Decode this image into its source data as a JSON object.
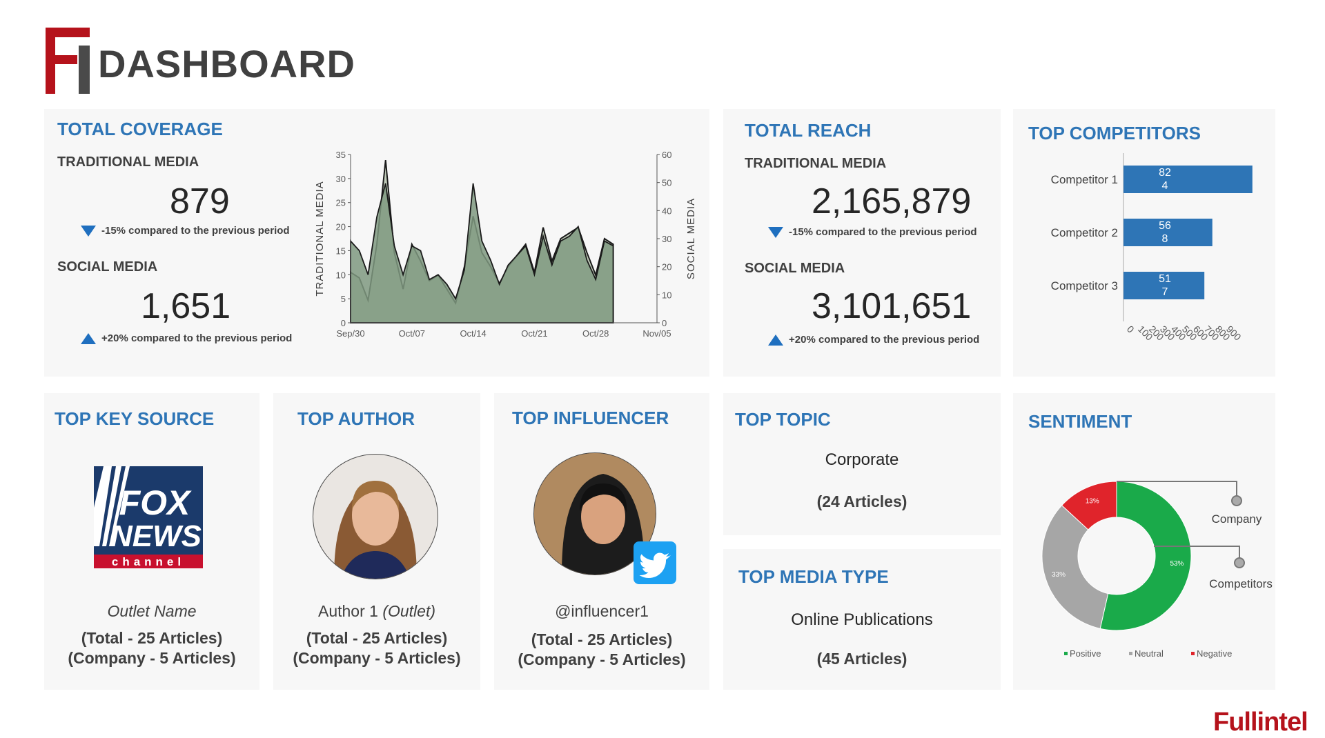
{
  "header": {
    "logo_letters": "FI",
    "title": "DASHBOARD"
  },
  "coverage": {
    "title": "TOTAL COVERAGE",
    "traditional_label": "TRADITIONAL MEDIA",
    "traditional_value": "879",
    "traditional_change": "-15% compared to the previous period",
    "social_label": "SOCIAL MEDIA",
    "social_value": "1,651",
    "social_change": "+20% compared to the previous period"
  },
  "reach": {
    "title": "TOTAL REACH",
    "traditional_label": "TRADITIONAL MEDIA",
    "traditional_value": "2,165,879",
    "traditional_change": "-15% compared to the previous period",
    "social_label": "SOCIAL MEDIA",
    "social_value": "3,101,651",
    "social_change": "+20% compared to the previous period"
  },
  "competitors": {
    "title": "TOP COMPETITORS"
  },
  "key_source": {
    "title": "TOP KEY SOURCE",
    "logo_text_1": "FOX",
    "logo_text_2": "NEWS",
    "logo_text_3": "channel",
    "outlet": "Outlet Name",
    "total": "(Total - 25 Articles)",
    "company": "(Company - 5 Articles)"
  },
  "author": {
    "title": "TOP AUTHOR",
    "name": "Author 1",
    "outlet": "(Outlet)",
    "total": "(Total - 25 Articles)",
    "company": "(Company - 5 Articles)"
  },
  "influencer": {
    "title": "TOP INFLUENCER",
    "handle": "@influencer1",
    "total": "(Total - 25 Articles)",
    "company": "(Company - 5 Articles)"
  },
  "topic": {
    "title": "TOP TOPIC",
    "value": "Corporate",
    "count": "(24 Articles)"
  },
  "media_type": {
    "title": "TOP MEDIA TYPE",
    "value": "Online Publications",
    "count": "(45 Articles)"
  },
  "sentiment": {
    "title": "SENTIMENT",
    "callout_outer": "Company",
    "callout_inner": "Competitors"
  },
  "footer": {
    "brand": "Fullintel"
  },
  "colors": {
    "accent_blue": "#2e75b6",
    "brand_red": "#b5121b",
    "positive": "#1aaa4a",
    "neutral": "#a6a6a6",
    "negative": "#e0242b",
    "bar_blue": "#2e75b6"
  },
  "chart_data": [
    {
      "type": "area",
      "title": "",
      "x": [
        "Sep/30",
        "Oct/01",
        "Oct/02",
        "Oct/03",
        "Oct/04",
        "Oct/05",
        "Oct/06",
        "Oct/07",
        "Oct/08",
        "Oct/09",
        "Oct/10",
        "Oct/11",
        "Oct/12",
        "Oct/13",
        "Oct/14",
        "Oct/15",
        "Oct/16",
        "Oct/17",
        "Oct/18",
        "Oct/19",
        "Oct/20",
        "Oct/21",
        "Oct/22",
        "Oct/23",
        "Oct/24",
        "Oct/25",
        "Oct/26",
        "Oct/27",
        "Oct/28",
        "Oct/29",
        "Oct/30"
      ],
      "x_tick_labels": [
        "Sep/30",
        "Oct/07",
        "Oct/14",
        "Oct/21",
        "Oct/28",
        "Nov/05"
      ],
      "x_tick_positions": [
        0,
        7,
        14,
        21,
        28,
        35
      ],
      "series": [
        {
          "name": "",
          "axis": "left",
          "values": [
            17,
            15,
            10,
            22,
            29,
            16,
            10,
            16,
            15,
            9,
            10,
            8,
            5,
            11,
            29,
            17,
            13,
            8,
            12,
            14,
            16,
            10,
            18,
            12,
            17,
            18,
            20,
            13,
            9,
            17,
            16
          ]
        },
        {
          "name": "",
          "axis": "right",
          "values": [
            18,
            16,
            8,
            28,
            58,
            25,
            12,
            28,
            22,
            15,
            17,
            12,
            7,
            20,
            38,
            25,
            20,
            14,
            20,
            24,
            28,
            18,
            34,
            22,
            30,
            32,
            34,
            25,
            17,
            30,
            28
          ]
        }
      ],
      "xlabel": "",
      "ylabel_left": "TRADITIONAL MEDIA",
      "ylabel_right": "SOCIAL MEDIA",
      "ylim_left": [
        0,
        35
      ],
      "ylim_right": [
        0,
        60
      ],
      "yticks_left": [
        0,
        5,
        10,
        15,
        20,
        25,
        30,
        35
      ],
      "yticks_right": [
        0,
        10,
        20,
        30,
        40,
        50,
        60
      ],
      "x_max": 35,
      "grid": false,
      "legend": "none"
    },
    {
      "type": "bar",
      "orientation": "horizontal",
      "categories": [
        "Competitor 1",
        "Competitor 2",
        "Competitor 3"
      ],
      "values": [
        824,
        568,
        517
      ],
      "data_labels": [
        [
          "82",
          "4"
        ],
        [
          "56",
          "8"
        ],
        [
          "51",
          "7"
        ]
      ],
      "xlim": [
        0,
        900
      ],
      "xticks": [
        "0",
        "100",
        "200",
        "300",
        "400",
        "500",
        "600",
        "700",
        "800",
        "900"
      ],
      "title": "",
      "xlabel": "",
      "ylabel": "",
      "legend": "none"
    },
    {
      "type": "pie",
      "donut": true,
      "labels": [
        "Positive",
        "Neutral",
        "Negative"
      ],
      "values": [
        53,
        33,
        13
      ],
      "data_labels": [
        "53%",
        "33%",
        "13%"
      ],
      "legend": "bottom"
    }
  ]
}
